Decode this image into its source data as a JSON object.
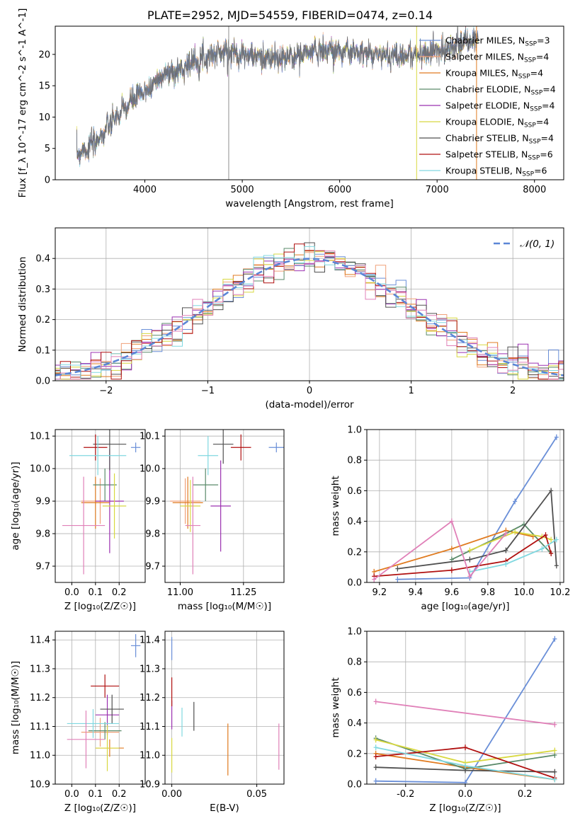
{
  "title": "PLATE=2952, MJD=54559, FIBERID=0474, z=0.14",
  "series": [
    {
      "color": "#6a8fd8",
      "label": "Chabrier MILES, N<sub>SSP</sub>=3"
    },
    {
      "color": "#f0a078",
      "label": "Salpeter MILES, N<sub>SSP</sub>=4"
    },
    {
      "color": "#e07b20",
      "label": "Kroupa MILES, N<sub>SSP</sub>=4"
    },
    {
      "color": "#5a8a6a",
      "label": "Chabrier ELODIE, N<sub>SSP</sub>=4"
    },
    {
      "color": "#9b30b0",
      "label": "Salpeter ELODIE, N<sub>SSP</sub>=4"
    },
    {
      "color": "#d8d840",
      "label": "Kroupa ELODIE, N<sub>SSP</sub>=4"
    },
    {
      "color": "#505050",
      "label": "Chabrier STELIB, N<sub>SSP</sub>=4"
    },
    {
      "color": "#b01010",
      "label": "Salpeter STELIB, N<sub>SSP</sub>=6"
    },
    {
      "color": "#80d8e0",
      "label": "Kroupa STELIB, N<sub>SSP</sub>=6"
    },
    {
      "color": "#e080b8",
      "label": ""
    }
  ],
  "chart_data": [
    {
      "type": "line",
      "name": "spectrum",
      "xlabel": "wavelength [Angstrom, rest frame]",
      "ylabel": "Flux [f_λ 10^-17 erg cm^-2 s^-1 A^-1]",
      "xlim": [
        3080,
        8300
      ],
      "ylim": [
        0,
        24.5
      ],
      "xticks": [
        4000,
        5000,
        6000,
        7000,
        8000
      ],
      "yticks": [
        0,
        5,
        10,
        15,
        20
      ],
      "spectrum_anchors": [
        [
          3300,
          4.3
        ],
        [
          3380,
          4.8
        ],
        [
          3500,
          6.0
        ],
        [
          3650,
          9.0
        ],
        [
          3800,
          11.5
        ],
        [
          3900,
          13.0
        ],
        [
          4000,
          14.0
        ],
        [
          4100,
          15.5
        ],
        [
          4200,
          17.0
        ],
        [
          4300,
          17.0
        ],
        [
          4400,
          18.0
        ],
        [
          4500,
          19.0
        ],
        [
          4700,
          20.0
        ],
        [
          4860,
          20.5
        ],
        [
          5000,
          20.0
        ],
        [
          5200,
          19.5
        ],
        [
          5400,
          19.2
        ],
        [
          5600,
          20.0
        ],
        [
          5800,
          20.8
        ],
        [
          6000,
          20.5
        ],
        [
          6200,
          20.2
        ],
        [
          6400,
          20.0
        ],
        [
          6600,
          19.8
        ],
        [
          6800,
          20.0
        ],
        [
          7000,
          20.5
        ],
        [
          7200,
          21.5
        ],
        [
          7400,
          22.5
        ]
      ],
      "grid": false,
      "legend": "top-right"
    },
    {
      "type": "line",
      "name": "residual distribution",
      "xlabel": "(data-model)/error",
      "ylabel": "Normed distribution",
      "xlim": [
        -2.5,
        2.5
      ],
      "ylim": [
        0,
        0.5
      ],
      "xticks": [
        -2,
        -1,
        0,
        1,
        2
      ],
      "yticks": [
        0.0,
        0.1,
        0.2,
        0.3,
        0.4
      ],
      "reference_curve": "N(0,1)",
      "reference_label": "𝒩(0, 1)",
      "grid": true,
      "legend": "top-right"
    },
    {
      "type": "scatter",
      "name": "age vs metallicity",
      "xlabel": "Z [log₁₀(Z/Z☉)]",
      "ylabel": "age  [log₁₀(age/yr)]",
      "xlim": [
        -0.07,
        0.31
      ],
      "ylim": [
        9.65,
        10.12
      ],
      "xticks": [
        0.0,
        0.1,
        0.2
      ],
      "yticks": [
        9.7,
        9.8,
        9.9,
        10.0,
        10.1
      ],
      "points": [
        {
          "s": 0,
          "x": 0.27,
          "y": 10.065,
          "xe": 0.02,
          "ye": 0.015
        },
        {
          "s": 1,
          "x": 0.12,
          "y": 9.9,
          "xe": 0.08,
          "ye": 0.07
        },
        {
          "s": 2,
          "x": 0.1,
          "y": 9.895,
          "xe": 0.06,
          "ye": 0.08
        },
        {
          "s": 3,
          "x": 0.14,
          "y": 9.95,
          "xe": 0.05,
          "ye": 0.05
        },
        {
          "s": 4,
          "x": 0.16,
          "y": 9.9,
          "xe": 0.06,
          "ye": 0.16
        },
        {
          "s": 5,
          "x": 0.18,
          "y": 9.885,
          "xe": 0.05,
          "ye": 0.1
        },
        {
          "s": 6,
          "x": 0.16,
          "y": 10.075,
          "xe": 0.07,
          "ye": 0.08
        },
        {
          "s": 7,
          "x": 0.1,
          "y": 10.065,
          "xe": 0.05,
          "ye": 0.04
        },
        {
          "s": 8,
          "x": 0.11,
          "y": 10.04,
          "xe": 0.12,
          "ye": 0.06
        },
        {
          "s": 9,
          "x": 0.05,
          "y": 9.825,
          "xe": 0.09,
          "ye": 0.15
        }
      ]
    },
    {
      "type": "scatter",
      "name": "age vs mass",
      "xlabel": "mass [log₁₀(M/M☉)]",
      "ylabel": "",
      "xlim": [
        10.94,
        11.41
      ],
      "ylim": [
        9.65,
        10.12
      ],
      "xticks": [
        11.0,
        11.25
      ],
      "yticks": [
        9.7,
        9.8,
        9.9,
        10.0,
        10.1
      ],
      "points": [
        {
          "s": 0,
          "x": 11.38,
          "y": 10.065,
          "xe": 0.03,
          "ye": 0.015
        },
        {
          "s": 1,
          "x": 11.02,
          "y": 9.9,
          "xe": 0.06,
          "ye": 0.07
        },
        {
          "s": 2,
          "x": 11.03,
          "y": 9.895,
          "xe": 0.06,
          "ye": 0.08
        },
        {
          "s": 3,
          "x": 11.1,
          "y": 9.95,
          "xe": 0.05,
          "ye": 0.05
        },
        {
          "s": 4,
          "x": 11.16,
          "y": 9.885,
          "xe": 0.04,
          "ye": 0.14
        },
        {
          "s": 5,
          "x": 11.04,
          "y": 9.885,
          "xe": 0.04,
          "ye": 0.08
        },
        {
          "s": 6,
          "x": 11.17,
          "y": 10.075,
          "xe": 0.04,
          "ye": 0.06
        },
        {
          "s": 7,
          "x": 11.24,
          "y": 10.065,
          "xe": 0.04,
          "ye": 0.04
        },
        {
          "s": 8,
          "x": 11.11,
          "y": 10.04,
          "xe": 0.04,
          "ye": 0.06
        },
        {
          "s": 9,
          "x": 11.05,
          "y": 9.825,
          "xe": 0.03,
          "ye": 0.15
        }
      ]
    },
    {
      "type": "line",
      "name": "mass weight vs age",
      "xlabel": "age  [log₁₀(age/yr)]",
      "ylabel": "mass weight",
      "xlim": [
        9.13,
        10.22
      ],
      "ylim": [
        0,
        1.0
      ],
      "xticks": [
        9.2,
        9.4,
        9.6,
        9.8,
        10.0,
        10.2
      ],
      "yticks": [
        0.0,
        0.2,
        0.4,
        0.6,
        0.8,
        1.0
      ],
      "grid": true,
      "lines": [
        {
          "s": 0,
          "x": [
            9.3,
            9.7,
            9.95,
            10.18
          ],
          "y": [
            0.02,
            0.03,
            0.53,
            0.95
          ]
        },
        {
          "s": 2,
          "x": [
            9.17,
            9.6,
            9.9,
            10.05
          ],
          "y": [
            0.07,
            0.22,
            0.34,
            0.3
          ]
        },
        {
          "s": 3,
          "x": [
            9.6,
            9.9,
            10.0,
            10.15
          ],
          "y": [
            0.15,
            0.32,
            0.38,
            0.19
          ]
        },
        {
          "s": 5,
          "x": [
            9.7,
            9.95,
            10.1,
            10.15
          ],
          "y": [
            0.21,
            0.33,
            0.3,
            0.28
          ]
        },
        {
          "s": 6,
          "x": [
            9.3,
            9.7,
            9.9,
            10.15,
            10.18
          ],
          "y": [
            0.09,
            0.15,
            0.21,
            0.6,
            0.11
          ]
        },
        {
          "s": 7,
          "x": [
            9.17,
            9.6,
            9.9,
            10.12,
            10.15
          ],
          "y": [
            0.04,
            0.08,
            0.14,
            0.31,
            0.19
          ]
        },
        {
          "s": 8,
          "x": [
            9.7,
            9.9,
            10.1,
            10.18
          ],
          "y": [
            0.07,
            0.12,
            0.22,
            0.28
          ]
        },
        {
          "s": 9,
          "x": [
            9.17,
            9.6,
            9.7,
            9.9
          ],
          "y": [
            0.02,
            0.4,
            0.04,
            0.32
          ]
        }
      ]
    },
    {
      "type": "scatter",
      "name": "mass vs metallicity",
      "xlabel": "Z [log₁₀(Z/Z☉)]",
      "ylabel": "mass [log₁₀(M/M☉)]",
      "xlim": [
        -0.07,
        0.31
      ],
      "ylim": [
        10.9,
        11.43
      ],
      "xticks": [
        0.0,
        0.1,
        0.2
      ],
      "yticks": [
        10.9,
        11.0,
        11.1,
        11.2,
        11.3,
        11.4
      ],
      "points": [
        {
          "s": 0,
          "x": 0.27,
          "y": 11.38,
          "xe": 0.02,
          "ye": 0.04
        },
        {
          "s": 1,
          "x": 0.12,
          "y": 11.08,
          "xe": 0.08,
          "ye": 0.05
        },
        {
          "s": 2,
          "x": 0.16,
          "y": 11.025,
          "xe": 0.06,
          "ye": 0.03
        },
        {
          "s": 3,
          "x": 0.14,
          "y": 11.085,
          "xe": 0.07,
          "ye": 0.03
        },
        {
          "s": 4,
          "x": 0.15,
          "y": 11.14,
          "xe": 0.05,
          "ye": 0.07
        },
        {
          "s": 5,
          "x": 0.15,
          "y": 11.025,
          "xe": 0.05,
          "ye": 0.08
        },
        {
          "s": 6,
          "x": 0.17,
          "y": 11.16,
          "xe": 0.05,
          "ye": 0.05
        },
        {
          "s": 7,
          "x": 0.14,
          "y": 11.24,
          "xe": 0.06,
          "ye": 0.04
        },
        {
          "s": 8,
          "x": 0.09,
          "y": 11.11,
          "xe": 0.11,
          "ye": 0.05
        },
        {
          "s": 9,
          "x": 0.06,
          "y": 11.055,
          "xe": 0.08,
          "ye": 0.1
        }
      ]
    },
    {
      "type": "scatter",
      "name": "mass vs extinction",
      "xlabel": "E(B-V)",
      "ylabel": "",
      "xlim": [
        -0.004,
        0.066
      ],
      "ylim": [
        10.9,
        11.43
      ],
      "xticks": [
        0.0,
        0.05
      ],
      "yticks": [
        10.9,
        11.0,
        11.1,
        11.2,
        11.3,
        11.4
      ],
      "points": [
        {
          "s": 0,
          "x": 0.0,
          "y": 11.37,
          "xe": 0,
          "ye": 0.04
        },
        {
          "s": 2,
          "x": 0.033,
          "y": 11.02,
          "xe": 0,
          "ye": 0.09
        },
        {
          "s": 4,
          "x": 0.0,
          "y": 11.14,
          "xe": 0,
          "ye": 0.05
        },
        {
          "s": 5,
          "x": 0.0,
          "y": 11.0,
          "xe": 0,
          "ye": 0.06
        },
        {
          "s": 6,
          "x": 0.013,
          "y": 11.135,
          "xe": 0,
          "ye": 0.05
        },
        {
          "s": 7,
          "x": 0.0,
          "y": 11.22,
          "xe": 0,
          "ye": 0.05
        },
        {
          "s": 8,
          "x": 0.006,
          "y": 11.115,
          "xe": 0,
          "ye": 0.05
        },
        {
          "s": 9,
          "x": 0.063,
          "y": 11.03,
          "xe": 0,
          "ye": 0.08
        }
      ]
    },
    {
      "type": "line",
      "name": "mass weight vs metallicity",
      "xlabel": "Z [log₁₀(Z/Z☉)]",
      "ylabel": "mass weight",
      "xlim": [
        -0.33,
        0.33
      ],
      "ylim": [
        0,
        1.0
      ],
      "xticks": [
        -0.2,
        0.0,
        0.2
      ],
      "yticks": [
        0.0,
        0.2,
        0.4,
        0.6,
        0.8,
        1.0
      ],
      "grid": true,
      "lines": [
        {
          "s": 0,
          "x": [
            -0.3,
            0.0,
            0.3
          ],
          "y": [
            0.02,
            0.01,
            0.95
          ]
        },
        {
          "s": 9,
          "x": [
            -0.3,
            0.3
          ],
          "y": [
            0.54,
            0.39
          ]
        },
        {
          "s": 2,
          "x": [
            -0.3,
            0.0,
            0.3
          ],
          "y": [
            0.2,
            0.11,
            0.03
          ]
        },
        {
          "s": 3,
          "x": [
            -0.3,
            0.0,
            0.3
          ],
          "y": [
            0.3,
            0.1,
            0.19
          ]
        },
        {
          "s": 5,
          "x": [
            -0.3,
            0.0,
            0.3
          ],
          "y": [
            0.29,
            0.14,
            0.22
          ]
        },
        {
          "s": 6,
          "x": [
            -0.3,
            0.0,
            0.3
          ],
          "y": [
            0.11,
            0.09,
            0.08
          ]
        },
        {
          "s": 7,
          "x": [
            -0.3,
            0.0,
            0.3
          ],
          "y": [
            0.18,
            0.24,
            0.04
          ]
        },
        {
          "s": 8,
          "x": [
            -0.3,
            0.0,
            0.3
          ],
          "y": [
            0.24,
            0.12,
            0.03
          ]
        }
      ]
    }
  ]
}
